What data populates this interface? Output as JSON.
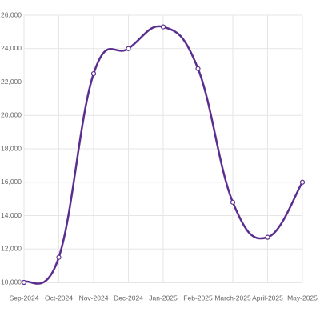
{
  "chart_data": {
    "type": "line",
    "categories": [
      "Sep-2024",
      "Oct-2024",
      "Nov-2024",
      "Dec-2024",
      "Jan-2025",
      "Feb-2025",
      "March-2025",
      "April-2025",
      "May-2025"
    ],
    "values": [
      10000,
      11500,
      22500,
      24000,
      25300,
      22800,
      14800,
      12700,
      16000
    ],
    "color": "#5b2d8e",
    "ylim": [
      10000,
      26000
    ],
    "yticks": [
      {
        "value": 10000,
        "label": "10,000"
      },
      {
        "value": 12000,
        "label": "12,000"
      },
      {
        "value": 14000,
        "label": "14,000"
      },
      {
        "value": 16000,
        "label": "16,000"
      },
      {
        "value": 18000,
        "label": "18,000"
      },
      {
        "value": 20000,
        "label": "20,000"
      },
      {
        "value": 22000,
        "label": "22,000"
      },
      {
        "value": 24000,
        "label": "24,000"
      },
      {
        "value": 26000,
        "label": "26,000"
      }
    ],
    "grid": true
  }
}
